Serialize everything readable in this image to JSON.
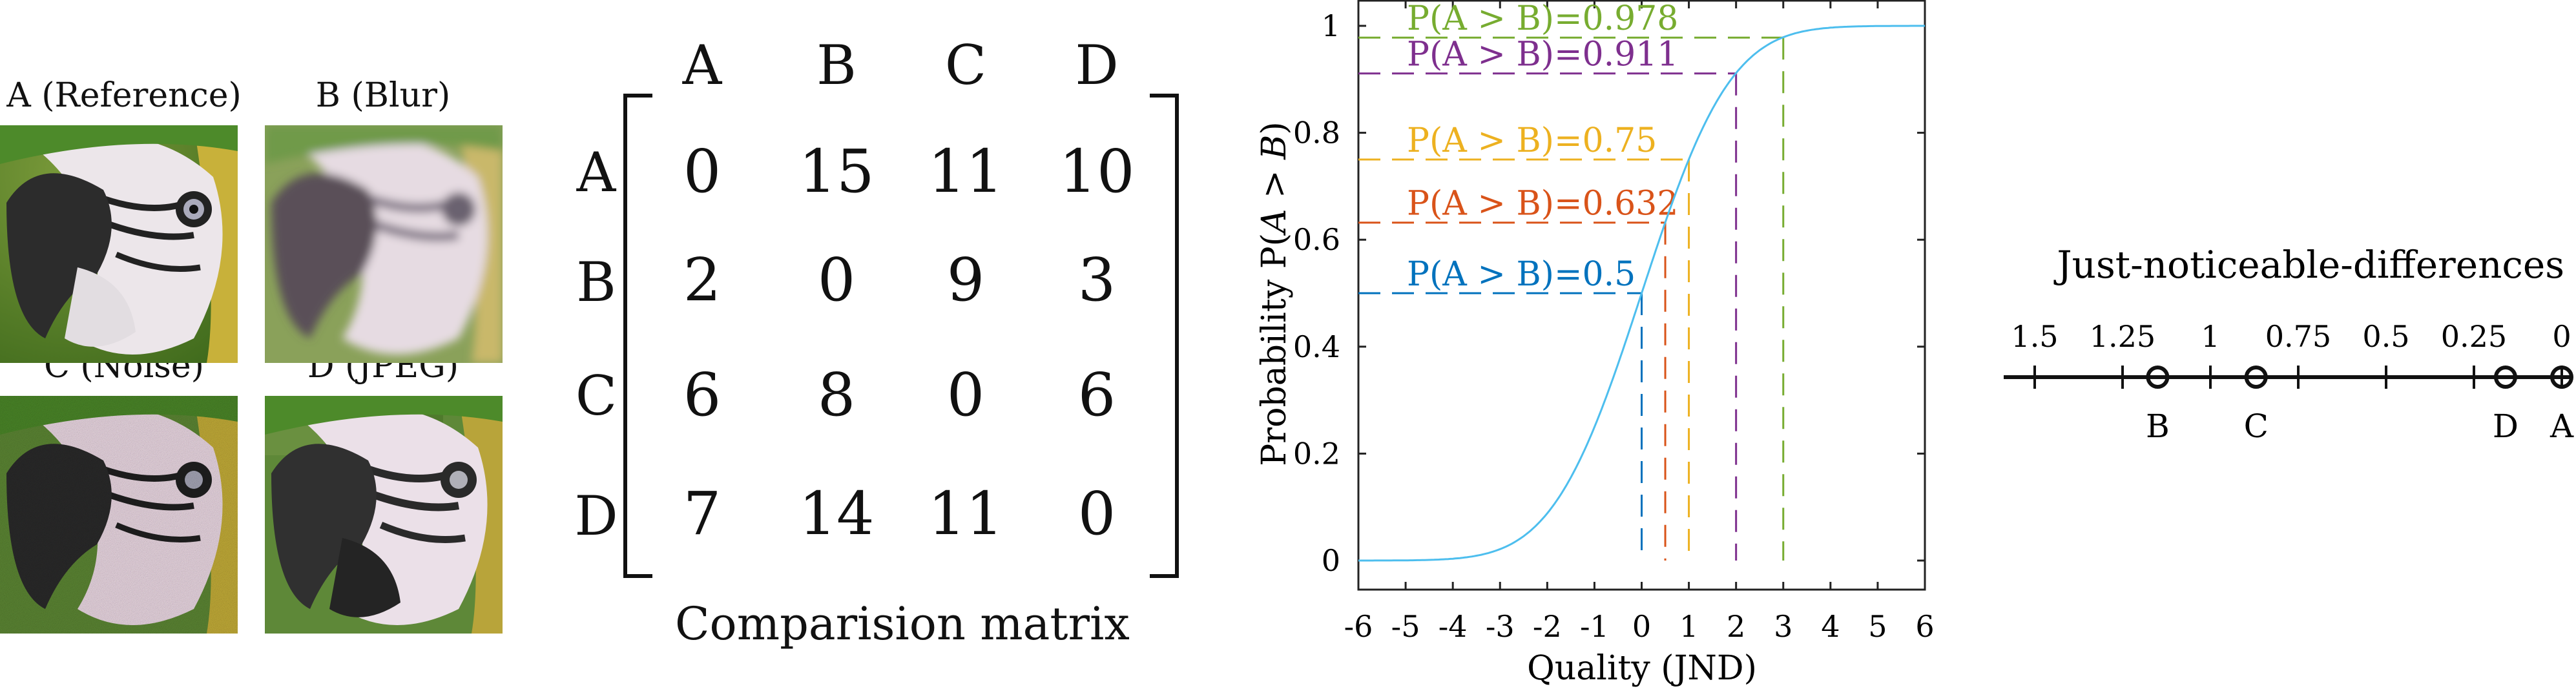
{
  "images": [
    {
      "label": "A (Reference)",
      "kind": "reference"
    },
    {
      "label": "B (Blur)",
      "kind": "blur"
    },
    {
      "label": "C (Noise)",
      "kind": "noise"
    },
    {
      "label": "D (JPEG)",
      "kind": "jpeg"
    }
  ],
  "matrix": {
    "cols": [
      "A",
      "B",
      "C",
      "D"
    ],
    "rows": [
      "A",
      "B",
      "C",
      "D"
    ],
    "values": [
      [
        0,
        15,
        11,
        10
      ],
      [
        2,
        0,
        9,
        3
      ],
      [
        6,
        8,
        0,
        6
      ],
      [
        7,
        14,
        11,
        0
      ]
    ],
    "caption": "Comparision matrix"
  },
  "chart_data": [
    {
      "type": "line",
      "xlabel": "Quality (JND)",
      "ylabel": "Probability P(A > B)",
      "xlim": [
        -6,
        6
      ],
      "ylim": [
        0,
        1
      ],
      "xticks": [
        "-6",
        "-5",
        "-4",
        "-3",
        "-2",
        "-1",
        "0",
        "1",
        "2",
        "3",
        "4",
        "5",
        "6"
      ],
      "yticks": [
        "0",
        "0.2",
        "0.4",
        "0.6",
        "0.8",
        "1"
      ],
      "curve": {
        "kind": "cumulative normal",
        "sigma": 1.48,
        "color": "#4DBEEE"
      },
      "markers": [
        {
          "label": "P(A > B)=0.978",
          "x": 3,
          "p": 0.978,
          "color": "#77AC30"
        },
        {
          "label": "P(A > B)=0.911",
          "x": 2,
          "p": 0.911,
          "color": "#7E2F8E"
        },
        {
          "label": "P(A > B)=0.75",
          "x": 1,
          "p": 0.75,
          "color": "#EDB120"
        },
        {
          "label": "P(A > B)=0.632",
          "x": 0.5,
          "p": 0.632,
          "color": "#D95319"
        },
        {
          "label": "P(A > B)=0.5",
          "x": 0,
          "p": 0.5,
          "color": "#0072BD"
        }
      ]
    },
    {
      "type": "scatter",
      "title": "Just-noticeable-differences",
      "ticks": [
        "1.5",
        "1.25",
        "1",
        "0.75",
        "0.5",
        "0.25",
        "0"
      ],
      "xlim": [
        1.5,
        0
      ],
      "points": [
        {
          "label": "B",
          "value": 1.15
        },
        {
          "label": "C",
          "value": 0.87
        },
        {
          "label": "D",
          "value": 0.16
        },
        {
          "label": "A",
          "value": 0
        }
      ]
    }
  ]
}
